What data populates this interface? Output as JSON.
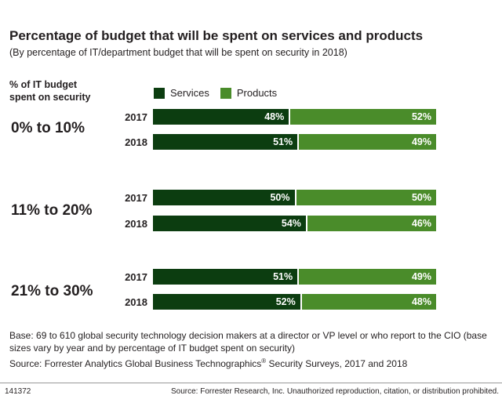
{
  "title": "Percentage of budget that will be spent on services and products",
  "subtitle": "(By percentage of IT/department budget that will be spent on security in 2018)",
  "axis_label": "% of IT budget spent on security",
  "legend": {
    "services": "Services",
    "products": "Products"
  },
  "colors": {
    "services": "#0c3d10",
    "products": "#4a8c2a"
  },
  "chart_data": {
    "type": "bar",
    "orientation": "horizontal",
    "stacked": true,
    "title": "Percentage of budget that will be spent on services and products",
    "subtitle": "(By percentage of IT/department budget that will be spent on security in 2018)",
    "ylabel": "% of IT budget spent on security",
    "legend_position": "top",
    "groups": [
      {
        "label": "0% to 10%",
        "rows": [
          {
            "year": "2017",
            "services": 48,
            "products": 52,
            "services_label": "48%",
            "products_label": "52%"
          },
          {
            "year": "2018",
            "services": 51,
            "products": 49,
            "services_label": "51%",
            "products_label": "49%"
          }
        ]
      },
      {
        "label": "11% to 20%",
        "rows": [
          {
            "year": "2017",
            "services": 50,
            "products": 50,
            "services_label": "50%",
            "products_label": "50%"
          },
          {
            "year": "2018",
            "services": 54,
            "products": 46,
            "services_label": "54%",
            "products_label": "46%"
          }
        ]
      },
      {
        "label": "21% to 30%",
        "rows": [
          {
            "year": "2017",
            "services": 51,
            "products": 49,
            "services_label": "51%",
            "products_label": "49%"
          },
          {
            "year": "2018",
            "services": 52,
            "products": 48,
            "services_label": "52%",
            "products_label": "48%"
          }
        ]
      }
    ]
  },
  "base_note": "Base: 69 to 610 global security technology decision makers at a director or VP level or who report to the CIO (base sizes vary by year and by percentage of IT budget spent on security)",
  "source_pre": "Source: Forrester Analytics Global Business Technographics",
  "source_sup": "®",
  "source_post": " Security Surveys, 2017 and 2018",
  "footer": {
    "id": "141372",
    "copyright": "Source: Forrester Research, Inc. Unauthorized reproduction, citation, or distribution prohibited."
  }
}
